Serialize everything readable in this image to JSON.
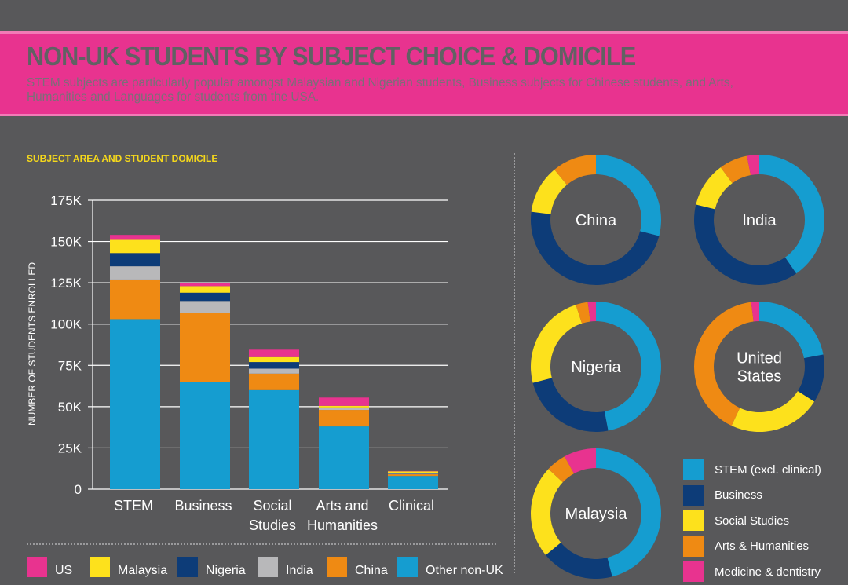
{
  "header": {
    "title": "NON-UK STUDENTS BY SUBJECT CHOICE & DOMICILE",
    "subtitle": "STEM subjects are particularly popular amongst Malaysian and Nigerian students, Business subjects for Chinese students, and Arts, Humanities and Languages for students from the USA."
  },
  "colors": {
    "us": "#e8338f",
    "malaysia": "#fde11c",
    "nigeria": "#0d3c78",
    "india": "#b8b8ba",
    "china": "#ef8a13",
    "other": "#159dd0",
    "stem": "#159dd0",
    "business": "#0d3c78",
    "social": "#fde11c",
    "arts": "#ef8a13",
    "medicine": "#e8338f"
  },
  "chart_data": [
    {
      "type": "bar",
      "stacked": true,
      "title": "SUBJECT AREA AND STUDENT DOMICILE",
      "xlabel": "",
      "ylabel": "NUMBER OF STUDENTS ENROLLED",
      "ylim": [
        0,
        175000
      ],
      "yticks": [
        "0",
        "25K",
        "50K",
        "75K",
        "100K",
        "125K",
        "150K",
        "175K"
      ],
      "ytick_values": [
        0,
        25000,
        50000,
        75000,
        100000,
        125000,
        150000,
        175000
      ],
      "grid": true,
      "categories": [
        "STEM",
        "Business",
        "Social Studies",
        "Arts and Humanities",
        "Clinical"
      ],
      "category_lines": [
        [
          "STEM"
        ],
        [
          "Business"
        ],
        [
          "Social",
          "Studies"
        ],
        [
          "Arts and",
          "Humanities"
        ],
        [
          "Clinical"
        ]
      ],
      "legend_position": "bottom",
      "series": [
        {
          "name": "Other non-UK",
          "key": "other",
          "values": [
            103000,
            65000,
            60000,
            38000,
            8000
          ]
        },
        {
          "name": "China",
          "key": "china",
          "values": [
            24000,
            42000,
            10000,
            10000,
            1000
          ]
        },
        {
          "name": "India",
          "key": "india",
          "values": [
            8000,
            7000,
            3000,
            1000,
            300
          ]
        },
        {
          "name": "Nigeria",
          "key": "nigeria",
          "values": [
            8000,
            5000,
            4000,
            500,
            300
          ]
        },
        {
          "name": "Malaysia",
          "key": "malaysia",
          "values": [
            8000,
            4000,
            3000,
            1000,
            1200
          ]
        },
        {
          "name": "US",
          "key": "us",
          "values": [
            3000,
            2000,
            4500,
            5000,
            200
          ]
        }
      ],
      "legend": [
        {
          "label": "US",
          "key": "us"
        },
        {
          "label": "Malaysia",
          "key": "malaysia"
        },
        {
          "label": "Nigeria",
          "key": "nigeria"
        },
        {
          "label": "India",
          "key": "india"
        },
        {
          "label": "China",
          "key": "china"
        },
        {
          "label": "Other non-UK",
          "key": "other"
        }
      ]
    },
    {
      "type": "pie",
      "donut": true,
      "legend_position": "bottom-right",
      "legend": [
        {
          "label": "STEM (excl. clinical)",
          "key": "stem"
        },
        {
          "label": "Business",
          "key": "business"
        },
        {
          "label": "Social Studies",
          "key": "social"
        },
        {
          "label": "Arts & Humanities",
          "key": "arts"
        },
        {
          "label": "Medicine & dentistry",
          "key": "medicine"
        }
      ],
      "donuts": [
        {
          "label_lines": [
            "China"
          ],
          "name": "China",
          "slices": {
            "stem": 29,
            "business": 48,
            "social": 12,
            "arts": 11,
            "medicine": 0
          }
        },
        {
          "label_lines": [
            "India"
          ],
          "name": "India",
          "slices": {
            "stem": 40,
            "business": 38,
            "social": 11,
            "arts": 7,
            "medicine": 3
          }
        },
        {
          "label_lines": [
            "Nigeria"
          ],
          "name": "Nigeria",
          "slices": {
            "stem": 47,
            "business": 24,
            "social": 24,
            "arts": 3,
            "medicine": 2
          }
        },
        {
          "label_lines": [
            "United",
            "States"
          ],
          "name": "United States",
          "slices": {
            "stem": 22,
            "business": 12,
            "social": 23,
            "arts": 41,
            "medicine": 2
          }
        },
        {
          "label_lines": [
            "Malaysia"
          ],
          "name": "Malaysia",
          "slices": {
            "stem": 46,
            "business": 18,
            "social": 23,
            "arts": 5,
            "medicine": 8
          }
        }
      ]
    }
  ]
}
